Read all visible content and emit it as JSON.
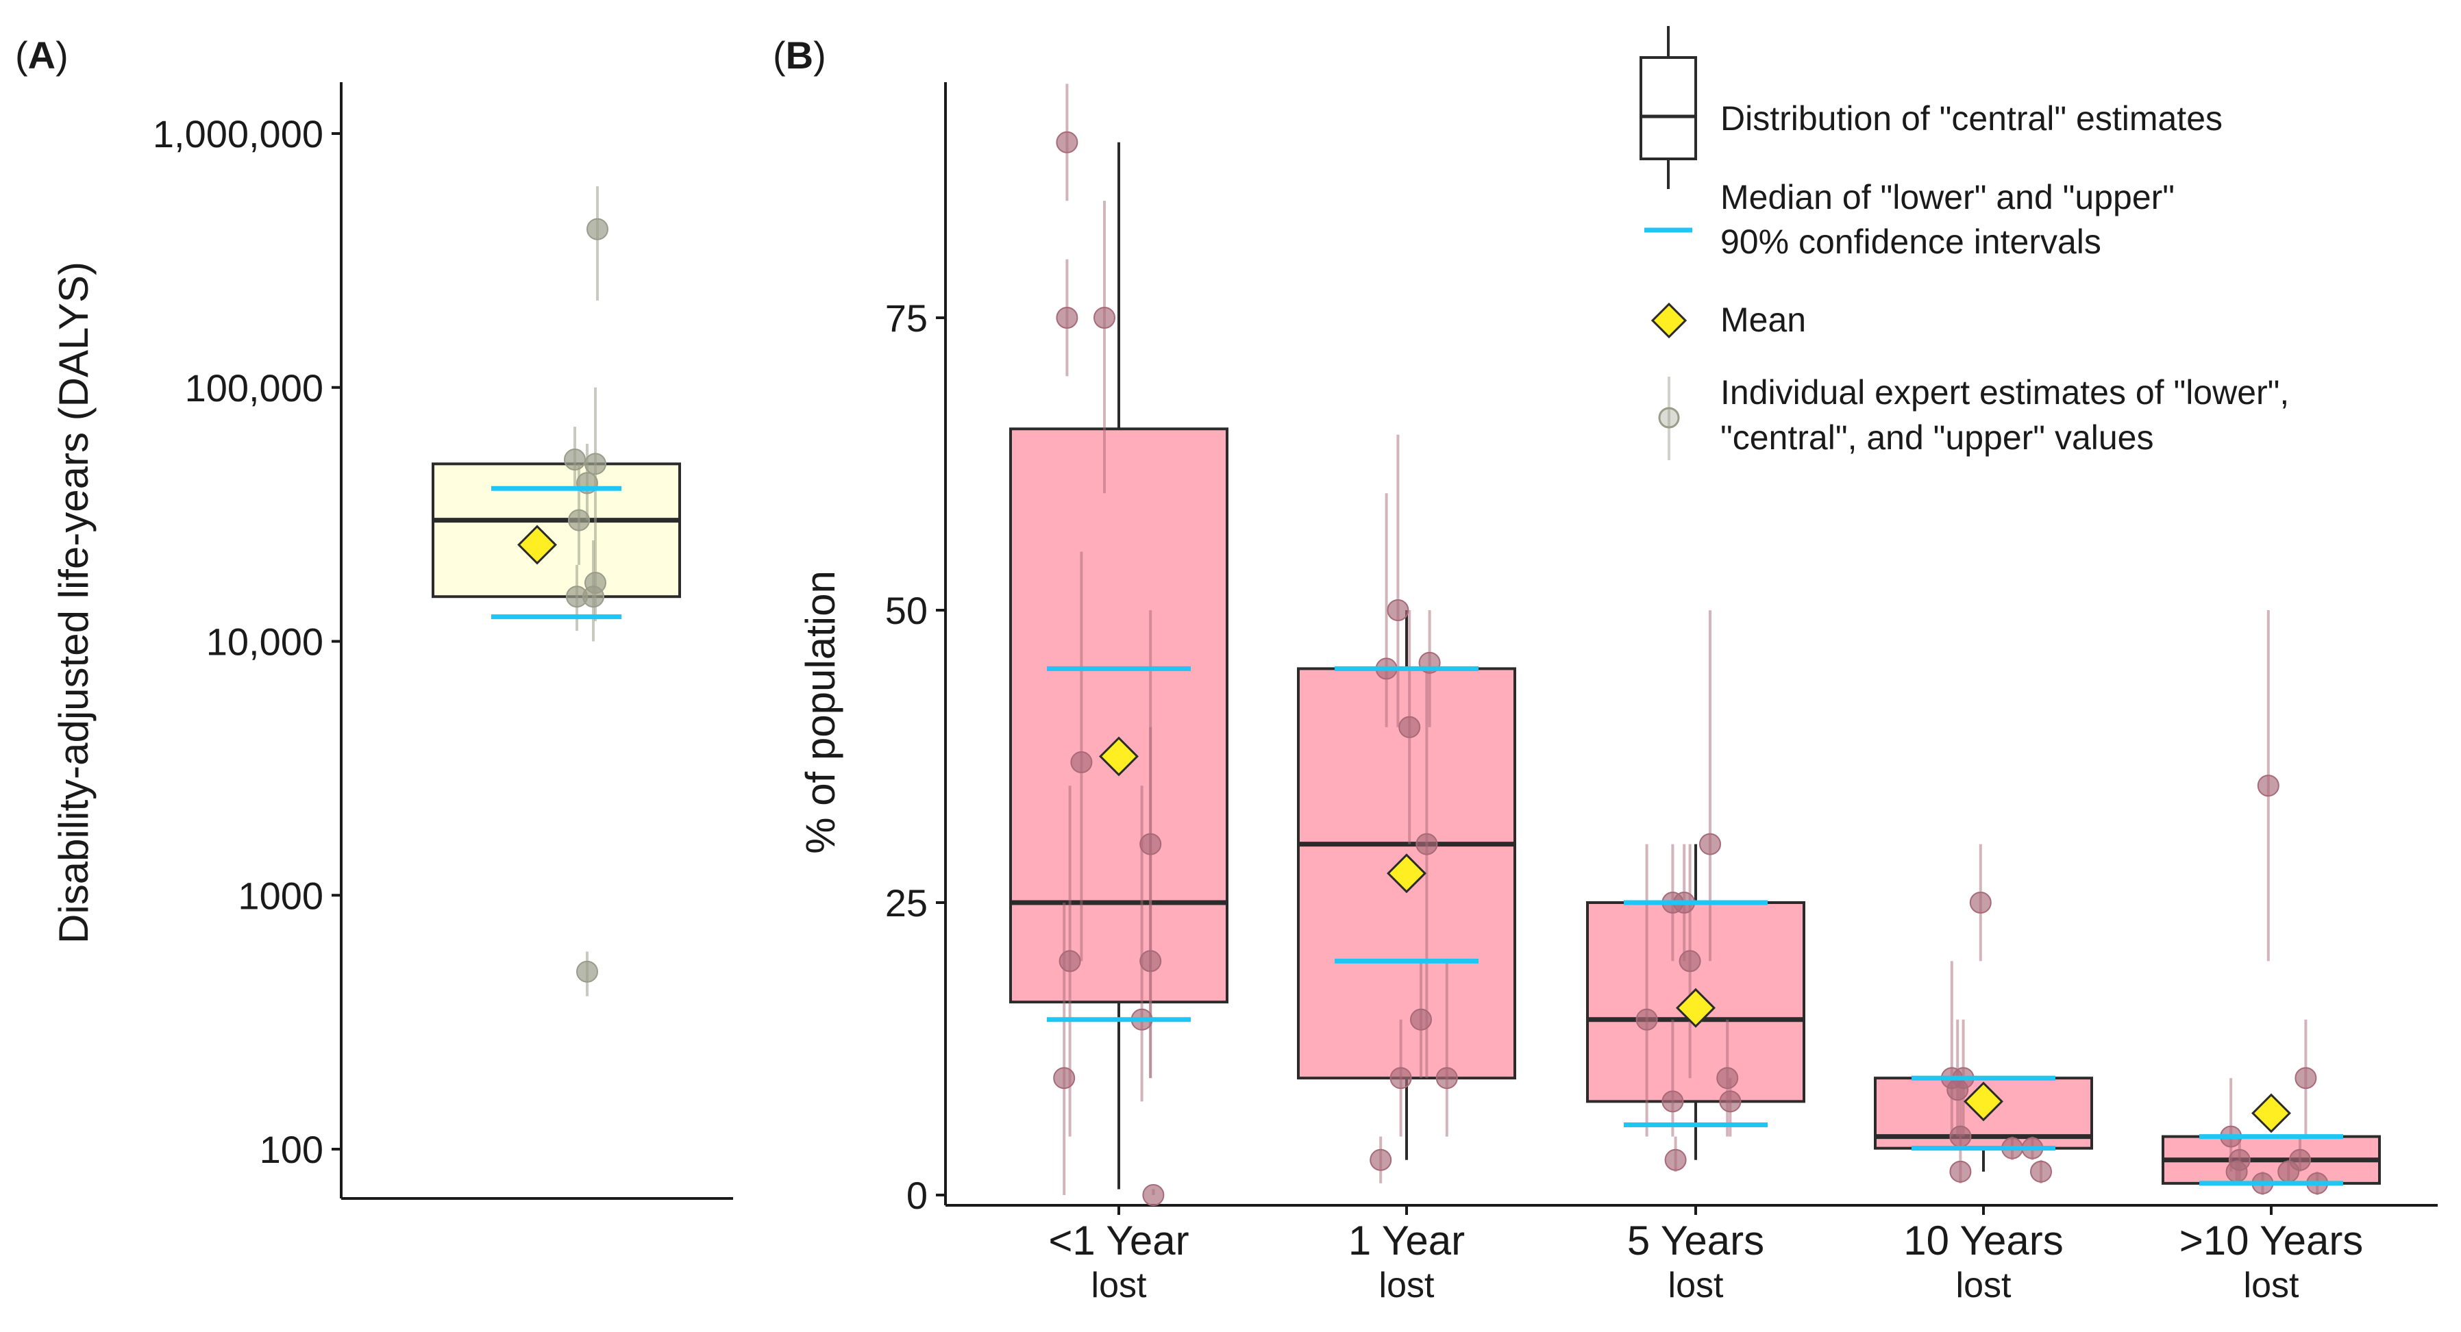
{
  "panels": {
    "a_label": "A",
    "b_label": "B"
  },
  "colors": {
    "box_fill_a": "#ffffe0",
    "box_fill_b": "#ffadba",
    "box_stroke": "#2b2b2b",
    "median_line": "#2b2b2b",
    "ci_median": "#1ec5f5",
    "mean_marker": "#ffee22",
    "point_a": "#9a9c8a",
    "point_b": "#a86a78"
  },
  "legend": {
    "box": "Distribution of \"central\" estimates",
    "ci_line1": "Median of \"lower\" and \"upper\"",
    "ci_line2": "90% confidence intervals",
    "mean": "Mean",
    "points_line1": "Individual expert estimates of \"lower\",",
    "points_line2": "\"central\", and \"upper\" values"
  },
  "chart_data": [
    {
      "panel": "A",
      "type": "box",
      "ylabel": "Disability-adjusted life-years (DALYS)",
      "xlabel": "",
      "yscale": "log",
      "ylim": [
        60,
        2000000
      ],
      "yticks": [
        100,
        1000,
        10000,
        100000,
        1000000
      ],
      "ytick_labels": [
        "100",
        "1000",
        "10,000",
        "100,000",
        "1,000,000"
      ],
      "box": {
        "q1": 15000,
        "median": 30000,
        "q3": 50000,
        "whisker_low": 15000,
        "whisker_high": 50000
      },
      "ci_medians": {
        "lower": 12500,
        "upper": 40000
      },
      "mean": 24000,
      "points": [
        {
          "central": 420000,
          "lower": 220000,
          "upper": 620000
        },
        {
          "central": 52000,
          "lower": 40000,
          "upper": 70000
        },
        {
          "central": 50000,
          "lower": 30000,
          "upper": 100000
        },
        {
          "central": 42000,
          "lower": 30000,
          "upper": 60000
        },
        {
          "central": 30000,
          "lower": 20000,
          "upper": 50000
        },
        {
          "central": 17000,
          "lower": 12000,
          "upper": 30000
        },
        {
          "central": 15000,
          "lower": 10000,
          "upper": 25000
        },
        {
          "central": 15000,
          "lower": 11000,
          "upper": 20000
        },
        {
          "central": 500,
          "lower": 400,
          "upper": 600
        }
      ]
    },
    {
      "panel": "B",
      "type": "box",
      "ylabel": "% of population",
      "xlabel": "",
      "ylim": [
        0,
        95
      ],
      "yticks": [
        0,
        25,
        50,
        75
      ],
      "ytick_labels": [
        "0",
        "25",
        "50",
        "75"
      ],
      "categories": [
        {
          "label": "<1 Year",
          "sub": "lost"
        },
        {
          "label": "1 Year",
          "sub": "lost"
        },
        {
          "label": "5 Years",
          "sub": "lost"
        },
        {
          "label": "10 Years",
          "sub": "lost"
        },
        {
          "label": ">10 Years",
          "sub": "lost"
        }
      ],
      "boxes": [
        {
          "q1": 16.5,
          "median": 25,
          "q3": 65.5,
          "whisker_low": 0.5,
          "whisker_high": 90,
          "ci_lower": 15,
          "ci_upper": 45,
          "mean": 37.5
        },
        {
          "q1": 10,
          "median": 30,
          "q3": 45,
          "whisker_low": 3,
          "whisker_high": 50,
          "ci_lower": 20,
          "ci_upper": 45,
          "mean": 27.5
        },
        {
          "q1": 8,
          "median": 15,
          "q3": 25,
          "whisker_low": 3,
          "whisker_high": 30,
          "ci_lower": 6,
          "ci_upper": 25,
          "mean": 16
        },
        {
          "q1": 4,
          "median": 5,
          "q3": 10,
          "whisker_low": 2,
          "whisker_high": 10,
          "ci_lower": 4,
          "ci_upper": 10,
          "mean": 8
        },
        {
          "q1": 1,
          "median": 3,
          "q3": 5,
          "whisker_low": 1,
          "whisker_high": 5,
          "ci_lower": 1,
          "ci_upper": 5,
          "mean": 7
        }
      ],
      "points": [
        [
          {
            "offset": -0.18,
            "central": 90,
            "lower": 85,
            "upper": 95
          },
          {
            "offset": -0.18,
            "central": 75,
            "lower": 70,
            "upper": 80
          },
          {
            "offset": -0.05,
            "central": 75,
            "lower": 60,
            "upper": 85
          },
          {
            "offset": -0.13,
            "central": 37,
            "lower": 20,
            "upper": 55
          },
          {
            "offset": -0.17,
            "central": 20,
            "lower": 5,
            "upper": 35
          },
          {
            "offset": -0.19,
            "central": 10,
            "lower": 0,
            "upper": 25
          },
          {
            "offset": 0.11,
            "central": 30,
            "lower": 10,
            "upper": 40
          },
          {
            "offset": 0.11,
            "central": 20,
            "lower": 10,
            "upper": 50
          },
          {
            "offset": 0.08,
            "central": 15,
            "lower": 8,
            "upper": 35
          },
          {
            "offset": 0.12,
            "central": 0,
            "lower": 0,
            "upper": 0.5
          }
        ],
        [
          {
            "offset": -0.03,
            "central": 50,
            "lower": 40,
            "upper": 65
          },
          {
            "offset": -0.07,
            "central": 45,
            "lower": 40,
            "upper": 60
          },
          {
            "offset": 0.08,
            "central": 45.5,
            "lower": 40,
            "upper": 50
          },
          {
            "offset": 0.01,
            "central": 40,
            "lower": 30,
            "upper": 50
          },
          {
            "offset": 0.07,
            "central": 30,
            "lower": 10,
            "upper": 45
          },
          {
            "offset": 0.05,
            "central": 15,
            "lower": 10,
            "upper": 20
          },
          {
            "offset": -0.02,
            "central": 10,
            "lower": 5,
            "upper": 15
          },
          {
            "offset": 0.14,
            "central": 10,
            "lower": 5,
            "upper": 20
          },
          {
            "offset": -0.09,
            "central": 3,
            "lower": 1,
            "upper": 5
          }
        ],
        [
          {
            "offset": 0.05,
            "central": 30,
            "lower": 20,
            "upper": 50
          },
          {
            "offset": -0.08,
            "central": 25,
            "lower": 20,
            "upper": 30
          },
          {
            "offset": -0.04,
            "central": 25,
            "lower": 20,
            "upper": 30
          },
          {
            "offset": -0.02,
            "central": 20,
            "lower": 10,
            "upper": 30
          },
          {
            "offset": -0.17,
            "central": 15,
            "lower": 5,
            "upper": 30
          },
          {
            "offset": -0.08,
            "central": 8,
            "lower": 5,
            "upper": 15
          },
          {
            "offset": 0.11,
            "central": 10,
            "lower": 5,
            "upper": 15
          },
          {
            "offset": 0.12,
            "central": 8,
            "lower": 5,
            "upper": 10
          },
          {
            "offset": -0.07,
            "central": 3,
            "lower": 2,
            "upper": 5
          }
        ],
        [
          {
            "offset": -0.01,
            "central": 25,
            "lower": 20,
            "upper": 30
          },
          {
            "offset": -0.11,
            "central": 10,
            "lower": 5,
            "upper": 20
          },
          {
            "offset": -0.09,
            "central": 9,
            "lower": 5,
            "upper": 15
          },
          {
            "offset": -0.07,
            "central": 10,
            "lower": 5,
            "upper": 15
          },
          {
            "offset": -0.08,
            "central": 5,
            "lower": 3,
            "upper": 10
          },
          {
            "offset": -0.08,
            "central": 2,
            "lower": 1,
            "upper": 3
          },
          {
            "offset": 0.1,
            "central": 4,
            "lower": 3,
            "upper": 5
          },
          {
            "offset": 0.17,
            "central": 4,
            "lower": 3,
            "upper": 5
          },
          {
            "offset": 0.2,
            "central": 2,
            "lower": 1,
            "upper": 3
          }
        ],
        [
          {
            "offset": -0.01,
            "central": 35,
            "lower": 20,
            "upper": 50
          },
          {
            "offset": 0.12,
            "central": 10,
            "lower": 5,
            "upper": 15
          },
          {
            "offset": -0.14,
            "central": 5,
            "lower": 2,
            "upper": 10
          },
          {
            "offset": -0.11,
            "central": 3,
            "lower": 1,
            "upper": 5
          },
          {
            "offset": -0.12,
            "central": 2,
            "lower": 1,
            "upper": 3
          },
          {
            "offset": 0.1,
            "central": 3,
            "lower": 2,
            "upper": 5
          },
          {
            "offset": 0.06,
            "central": 2,
            "lower": 1,
            "upper": 3
          },
          {
            "offset": -0.03,
            "central": 1,
            "lower": 0,
            "upper": 2
          },
          {
            "offset": 0.16,
            "central": 1,
            "lower": 0,
            "upper": 2
          }
        ]
      ]
    }
  ]
}
